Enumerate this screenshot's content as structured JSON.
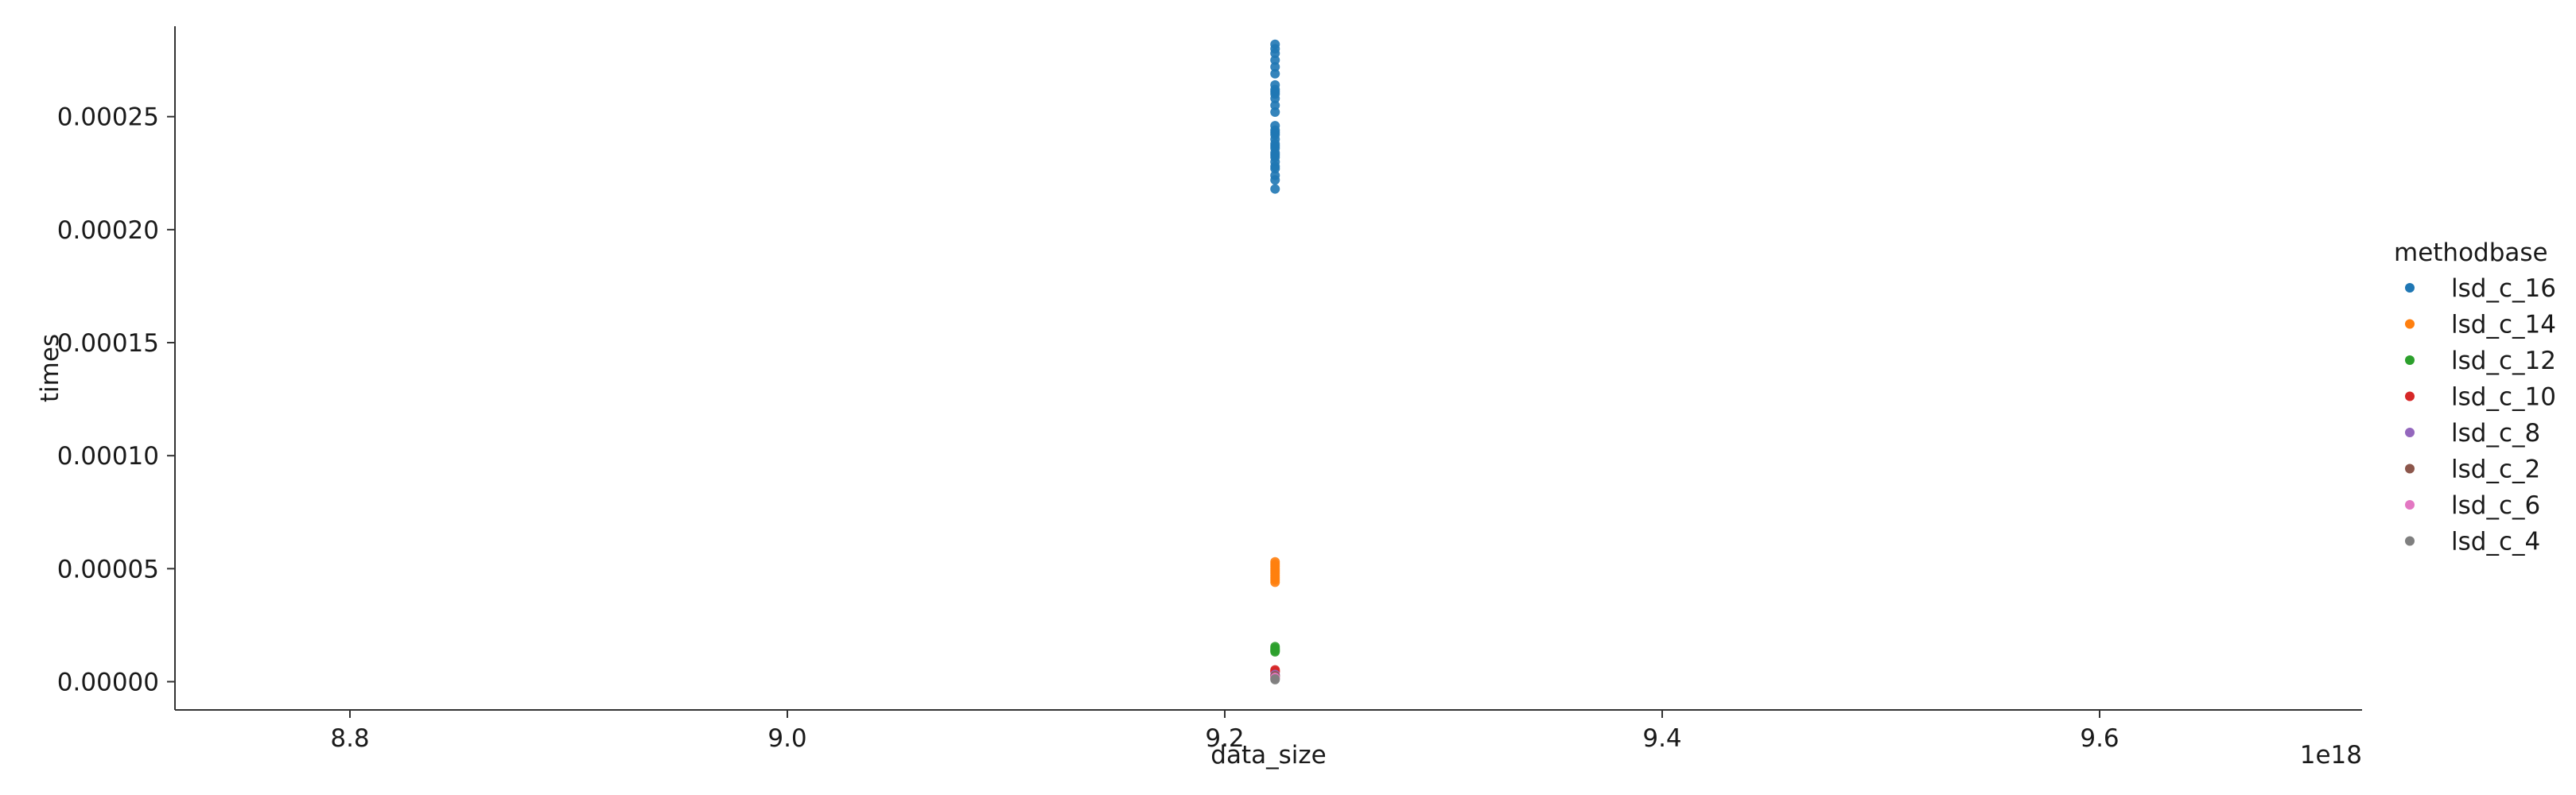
{
  "chart_data": {
    "type": "scatter",
    "xlabel": "data_size",
    "ylabel": "times",
    "x_offset_label": "1e18",
    "xlim": [
      8.72,
      9.72
    ],
    "ylim": [
      -1.25e-05,
      0.00029
    ],
    "x_ticks": [
      {
        "value": 8.8,
        "label": "8.8"
      },
      {
        "value": 9.0,
        "label": "9.0"
      },
      {
        "value": 9.2,
        "label": "9.2"
      },
      {
        "value": 9.4,
        "label": "9.4"
      },
      {
        "value": 9.6,
        "label": "9.6"
      }
    ],
    "y_ticks": [
      {
        "value": 0.0,
        "label": "0.00000"
      },
      {
        "value": 5e-05,
        "label": "0.00005"
      },
      {
        "value": 0.0001,
        "label": "0.00010"
      },
      {
        "value": 0.00015,
        "label": "0.00015"
      },
      {
        "value": 0.0002,
        "label": "0.00020"
      },
      {
        "value": 0.00025,
        "label": "0.00025"
      }
    ],
    "grid": false,
    "legend": {
      "title": "methodbase",
      "placement": "right"
    },
    "series": [
      {
        "name": "lsd_c_16",
        "color": "#1f77b4",
        "x": [
          9.223,
          9.223,
          9.223,
          9.223,
          9.223,
          9.223,
          9.223,
          9.223,
          9.223,
          9.223,
          9.223,
          9.223,
          9.223,
          9.223,
          9.223,
          9.223,
          9.223,
          9.223,
          9.223,
          9.223,
          9.223,
          9.223,
          9.223,
          9.223,
          9.223,
          9.223,
          9.223,
          9.223,
          9.223,
          9.223
        ],
        "y": [
          0.000282,
          0.00028,
          0.000278,
          0.000275,
          0.000272,
          0.000269,
          0.000264,
          0.000262,
          0.00026,
          0.000258,
          0.000255,
          0.000252,
          0.000246,
          0.000244,
          0.000242,
          0.00024,
          0.000238,
          0.000236,
          0.000234,
          0.000232,
          0.00023,
          0.000228,
          0.000224,
          0.000222,
          0.000218,
          0.000261,
          0.000243,
          0.000237,
          0.000233,
          0.000227
        ]
      },
      {
        "name": "lsd_c_14",
        "color": "#ff7f0e",
        "x": [
          9.223,
          9.223,
          9.223,
          9.223,
          9.223,
          9.223,
          9.223,
          9.223,
          9.223,
          9.223
        ],
        "y": [
          5.3e-05,
          5.2e-05,
          5.1e-05,
          5e-05,
          4.9e-05,
          4.8e-05,
          4.7e-05,
          4.6e-05,
          4.5e-05,
          4.4e-05
        ]
      },
      {
        "name": "lsd_c_12",
        "color": "#2ca02c",
        "x": [
          9.223,
          9.223,
          9.223,
          9.223,
          9.223
        ],
        "y": [
          1.55e-05,
          1.48e-05,
          1.42e-05,
          1.37e-05,
          1.32e-05
        ]
      },
      {
        "name": "lsd_c_10",
        "color": "#d62728",
        "x": [
          9.223,
          9.223,
          9.223
        ],
        "y": [
          5.2e-06,
          4.7e-06,
          4.3e-06
        ]
      },
      {
        "name": "lsd_c_8",
        "color": "#9467bd",
        "x": [
          9.223,
          9.223
        ],
        "y": [
          3.2e-06,
          2.9e-06
        ]
      },
      {
        "name": "lsd_c_2",
        "color": "#8c564b",
        "x": [
          9.223,
          9.223
        ],
        "y": [
          2.6e-06,
          2.3e-06
        ]
      },
      {
        "name": "lsd_c_6",
        "color": "#e377c2",
        "x": [
          9.223,
          9.223
        ],
        "y": [
          1.9e-06,
          1.6e-06
        ]
      },
      {
        "name": "lsd_c_4",
        "color": "#7f7f7f",
        "x": [
          9.223,
          9.223
        ],
        "y": [
          1.2e-06,
          9e-07
        ]
      }
    ]
  }
}
